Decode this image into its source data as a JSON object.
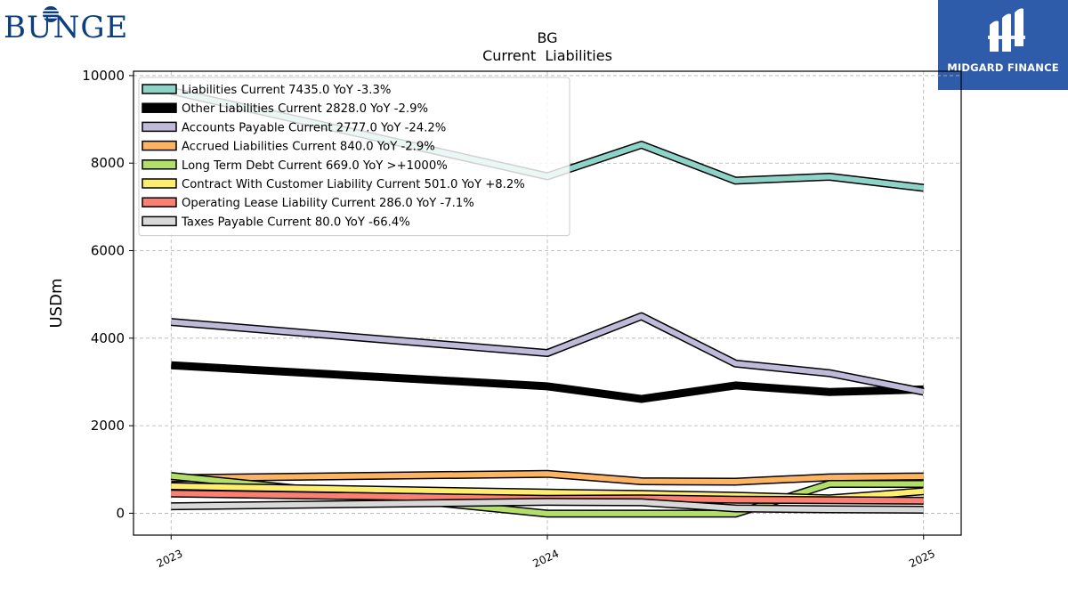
{
  "brand": {
    "name": "BUNGE",
    "color": "#0c3f7f"
  },
  "watermark": {
    "name": "MIDGARD FINANCE",
    "background": "#2f5bab"
  },
  "chart_data": {
    "type": "line",
    "title": "BG",
    "subtitle": "Current  Liabilities",
    "ylabel": "USDm",
    "xlabel": "",
    "ylim": [
      -500,
      10100
    ],
    "yticks": [
      0,
      2000,
      4000,
      6000,
      8000,
      10000
    ],
    "xticks": [
      {
        "label": "2023",
        "value": 2023.0
      },
      {
        "label": "2024",
        "value": 2024.0
      },
      {
        "label": "2025",
        "value": 2025.0
      }
    ],
    "xlim": [
      2022.9,
      2025.1
    ],
    "grid": true,
    "legend_position": "top-left",
    "x": [
      2023.0,
      2024.0,
      2024.25,
      2024.5,
      2024.75,
      2025.0
    ],
    "series": [
      {
        "name": "Liabilities Current",
        "legend": "Liabilities Current  7435.0 YoY -3.3%",
        "color": "#8dd3c7",
        "width": 6,
        "values": [
          9650,
          7700,
          8420,
          7600,
          7690,
          7435
        ]
      },
      {
        "name": "Other Liabilities Current",
        "legend": "Other Liabilities Current  2828.0 YoY -2.9%",
        "color": "#000000",
        "width": 9,
        "values": [
          3380,
          2900,
          2610,
          2920,
          2770,
          2828
        ]
      },
      {
        "name": "Accounts Payable Current",
        "legend": "Accounts Payable Current  2777.0 YoY -24.2%",
        "color": "#bebada",
        "width": 6,
        "values": [
          4370,
          3660,
          4500,
          3420,
          3200,
          2777
        ]
      },
      {
        "name": "Accrued Liabilities Current",
        "legend": "Accrued Liabilities Current  840.0 YoY -2.9%",
        "color": "#fdb462",
        "width": 6,
        "values": [
          800,
          900,
          730,
          720,
          820,
          840
        ]
      },
      {
        "name": "Long Term Debt Current",
        "legend": "Long Term Debt Current  669.0 YoY >+1000%",
        "color": "#b3de69",
        "width": 6,
        "values": [
          850,
          -10,
          -10,
          -10,
          670,
          669
        ]
      },
      {
        "name": "Contract With Customer Liability Current",
        "legend": "Contract With Customer Liability Current  501.0 YoY +8.2%",
        "color": "#ffed6f",
        "width": 6,
        "values": [
          620,
          470,
          440,
          400,
          340,
          501
        ]
      },
      {
        "name": "Operating Lease Liability Current",
        "legend": "Operating Lease Liability Current  286.0 YoY -7.1%",
        "color": "#fb8072",
        "width": 6,
        "values": [
          450,
          330,
          340,
          310,
          300,
          286
        ]
      },
      {
        "name": "Taxes Payable Current",
        "legend": "Taxes Payable Current  80.0 YoY -66.4%",
        "color": "#d9d9d9",
        "width": 6,
        "values": [
          160,
          260,
          250,
          110,
          90,
          80
        ]
      }
    ]
  }
}
